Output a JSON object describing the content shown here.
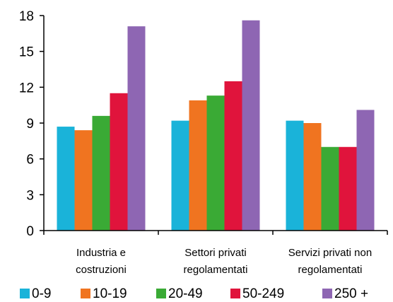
{
  "chart_data": {
    "type": "bar",
    "title": "",
    "xlabel": "",
    "ylabel": "",
    "ylim": [
      0,
      18
    ],
    "yticks": [
      0,
      3,
      6,
      9,
      12,
      15,
      18
    ],
    "grid": false,
    "legend_position": "bottom",
    "categories": [
      {
        "id": "industria",
        "lines": [
          "Industria e",
          "costruzioni"
        ]
      },
      {
        "id": "settori",
        "lines": [
          "Settori privati",
          "regolamentati"
        ]
      },
      {
        "id": "servizi",
        "lines": [
          "Servizi privati non",
          "regolamentati"
        ]
      }
    ],
    "series": [
      {
        "name": "0-9",
        "color": "#1ab3d9",
        "values": [
          8.7,
          9.2,
          9.2
        ]
      },
      {
        "name": "10-19",
        "color": "#f07420",
        "values": [
          8.4,
          10.9,
          9.0
        ]
      },
      {
        "name": "20-49",
        "color": "#3aaa35",
        "values": [
          9.6,
          11.3,
          7.0
        ]
      },
      {
        "name": "50-249",
        "color": "#e0143c",
        "values": [
          11.5,
          12.5,
          7.0
        ]
      },
      {
        "name": "250 +",
        "color": "#8e66b3",
        "values": [
          17.1,
          17.6,
          10.1
        ]
      }
    ]
  }
}
